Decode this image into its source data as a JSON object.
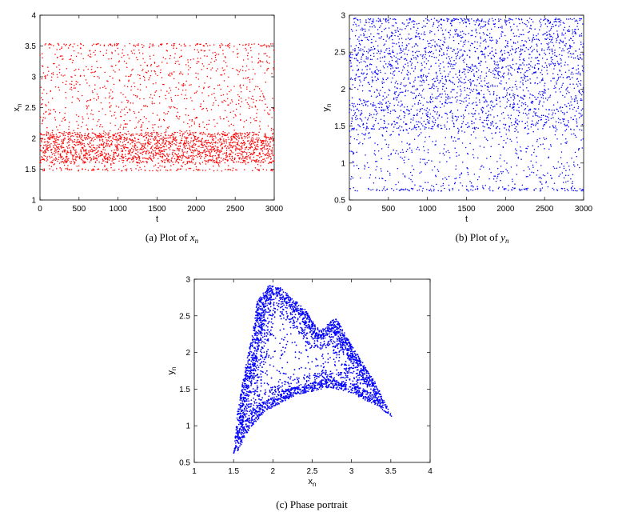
{
  "chart_data": [
    {
      "type": "scatter",
      "id": "a",
      "caption_prefix": "(a)  Plot of",
      "caption_var": "x",
      "caption_sub": "n",
      "xlabel": "t",
      "ylabel": "x",
      "ylabel_sub": "n",
      "xlim": [
        0,
        3000
      ],
      "ylim": [
        1,
        4
      ],
      "xticks": [
        "0",
        "500",
        "1000",
        "1500",
        "2000",
        "2500",
        "3000"
      ],
      "yticks": [
        "1",
        "1.5",
        "2",
        "2.5",
        "3",
        "3.5",
        "4"
      ],
      "color": "#ff0000",
      "n_points": 3000,
      "value_range": [
        1.47,
        3.54
      ],
      "dense_band": [
        1.6,
        2.1
      ]
    },
    {
      "type": "scatter",
      "id": "b",
      "caption_prefix": "(b)  Plot of",
      "caption_var": "y",
      "caption_sub": "n",
      "xlabel": "t",
      "ylabel": "y",
      "ylabel_sub": "n",
      "xlim": [
        0,
        3000
      ],
      "ylim": [
        0.5,
        3
      ],
      "xticks": [
        "0",
        "500",
        "1000",
        "1500",
        "2000",
        "2500",
        "3000"
      ],
      "yticks": [
        "0.5",
        "1",
        "1.5",
        "2",
        "2.5",
        "3"
      ],
      "color": "#0000ff",
      "n_points": 3000,
      "value_range": [
        0.62,
        2.96
      ],
      "dense_band": [
        1.45,
        2.95
      ]
    },
    {
      "type": "scatter",
      "id": "c",
      "caption_prefix": "(c)  Phase portrait",
      "caption_var": "",
      "caption_sub": "",
      "xlabel": "x",
      "xlabel_sub": "n",
      "ylabel": "y",
      "ylabel_sub": "n",
      "xlim": [
        1,
        4
      ],
      "ylim": [
        0.5,
        3
      ],
      "xticks": [
        "1",
        "1.5",
        "2",
        "2.5",
        "3",
        "3.5",
        "4"
      ],
      "yticks": [
        "0.5",
        "1",
        "1.5",
        "2",
        "2.5",
        "3"
      ],
      "color": "#0000ff",
      "n_points": 3000,
      "attractor_outline": [
        [
          1.5,
          0.62
        ],
        [
          1.55,
          1.2
        ],
        [
          1.65,
          1.8
        ],
        [
          1.75,
          2.3
        ],
        [
          1.8,
          2.7
        ],
        [
          1.95,
          2.92
        ],
        [
          2.1,
          2.88
        ],
        [
          2.4,
          2.6
        ],
        [
          2.6,
          2.3
        ],
        [
          2.8,
          2.48
        ],
        [
          3.0,
          2.1
        ],
        [
          3.3,
          1.6
        ],
        [
          3.52,
          1.12
        ],
        [
          3.3,
          1.28
        ],
        [
          3.0,
          1.45
        ],
        [
          2.7,
          1.52
        ],
        [
          2.3,
          1.42
        ],
        [
          1.9,
          1.2
        ],
        [
          1.7,
          0.95
        ],
        [
          1.55,
          0.65
        ]
      ]
    }
  ]
}
